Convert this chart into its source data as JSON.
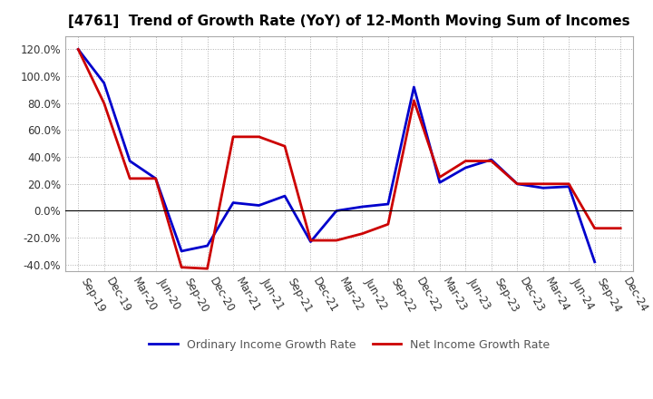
{
  "title": "[4761]  Trend of Growth Rate (YoY) of 12-Month Moving Sum of Incomes",
  "x_labels": [
    "Sep-19",
    "Dec-19",
    "Mar-20",
    "Jun-20",
    "Sep-20",
    "Dec-20",
    "Mar-21",
    "Jun-21",
    "Sep-21",
    "Dec-21",
    "Mar-22",
    "Jun-22",
    "Sep-22",
    "Dec-22",
    "Mar-23",
    "Jun-23",
    "Sep-23",
    "Dec-23",
    "Mar-24",
    "Jun-24",
    "Sep-24",
    "Dec-24"
  ],
  "ordinary_income": [
    120,
    95,
    37,
    24,
    -30,
    -26,
    6,
    4,
    11,
    -23,
    0,
    3,
    5,
    92,
    21,
    32,
    38,
    20,
    17,
    18,
    -38,
    null
  ],
  "net_income": [
    120,
    80,
    24,
    24,
    -42,
    -43,
    55,
    55,
    48,
    -22,
    -22,
    -17,
    -10,
    82,
    25,
    37,
    37,
    20,
    20,
    20,
    -13,
    -13
  ],
  "ylim": [
    -45,
    130
  ],
  "yticks": [
    -40,
    -20,
    0,
    20,
    40,
    60,
    80,
    100,
    120
  ],
  "ordinary_color": "#0000cc",
  "net_color": "#cc0000",
  "grid_color": "#b0b0b0",
  "background_color": "#ffffff",
  "legend_ordinary": "Ordinary Income Growth Rate",
  "legend_net": "Net Income Growth Rate",
  "title_fontsize": 11,
  "tick_fontsize": 8.5,
  "legend_fontsize": 9,
  "legend_text_color": "#555555"
}
